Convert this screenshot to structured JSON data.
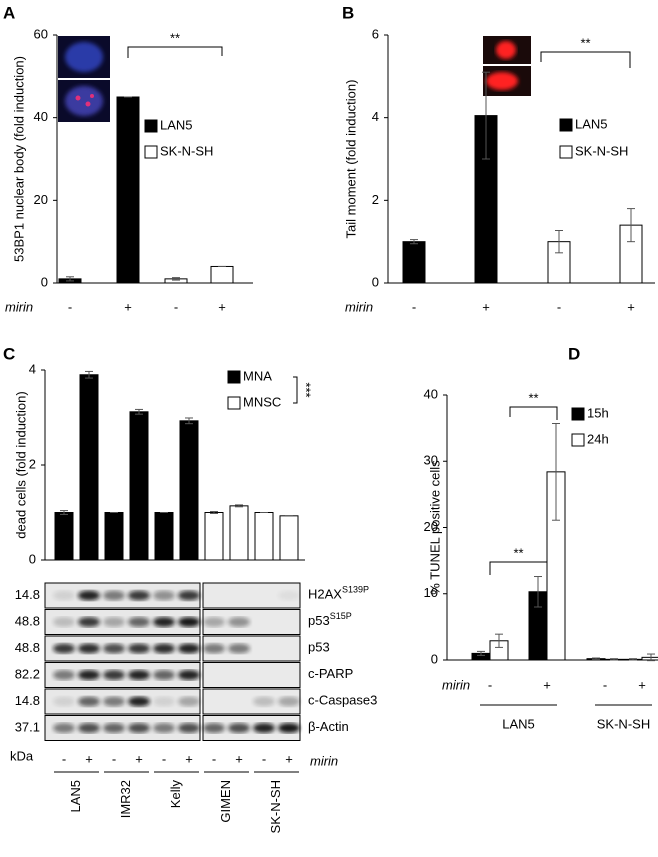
{
  "chart_data": [
    {
      "type": "bar",
      "panel": "A",
      "ylabel": "53BP1 nuclear body (fold induction)",
      "x_label": "mirin",
      "categories": [
        "-",
        "+",
        "-",
        "+"
      ],
      "series": [
        {
          "name": "LAN5",
          "color": "#000000",
          "values": [
            1,
            45,
            null,
            null
          ],
          "errors": [
            0.5,
            0,
            null,
            null
          ]
        },
        {
          "name": "SK-N-SH",
          "color": "#ffffff",
          "values": [
            null,
            null,
            1,
            4
          ],
          "errors": [
            null,
            null,
            0.3,
            0
          ]
        }
      ],
      "ylim": [
        0,
        60
      ],
      "yticks": [
        0,
        20,
        40,
        60
      ],
      "annotations": [
        "**"
      ]
    },
    {
      "type": "bar",
      "panel": "B",
      "ylabel": "Tail moment  (fold induction)",
      "x_label": "mirin",
      "categories": [
        "-",
        "+",
        "-",
        "+"
      ],
      "series": [
        {
          "name": "LAN5",
          "color": "#000000",
          "values": [
            1,
            4.05,
            null,
            null
          ],
          "errors": [
            0.05,
            1.05,
            null,
            null
          ]
        },
        {
          "name": "SK-N-SH",
          "color": "#ffffff",
          "values": [
            null,
            null,
            1,
            1.4
          ],
          "errors": [
            null,
            null,
            0.27,
            0.4
          ]
        }
      ],
      "ylim": [
        0,
        6
      ],
      "yticks": [
        0,
        2,
        4,
        6
      ],
      "annotations": [
        "**"
      ]
    },
    {
      "type": "bar",
      "panel": "C",
      "ylabel": "dead cells (fold induction)",
      "x_label": "mirin",
      "categories": [
        "-",
        "+",
        "-",
        "+",
        "-",
        "+",
        "-",
        "+",
        "-",
        "+"
      ],
      "groups": [
        "LAN5",
        "IMR32",
        "Kelly",
        "GIMEN",
        "SK-N-SH"
      ],
      "series": [
        {
          "name": "MNA",
          "color": "#000000",
          "values": [
            1,
            3.9,
            1,
            3.12,
            1,
            2.93,
            null,
            null,
            null,
            null
          ],
          "errors": [
            0.04,
            0.07,
            0,
            0.05,
            0,
            0.06,
            null,
            null,
            null,
            null
          ]
        },
        {
          "name": "MNSC",
          "color": "#ffffff",
          "values": [
            null,
            null,
            null,
            null,
            null,
            null,
            1,
            1.14,
            1,
            0.93
          ],
          "errors": [
            null,
            null,
            null,
            null,
            null,
            null,
            0.02,
            0.02,
            0,
            0
          ]
        }
      ],
      "ylim": [
        0,
        4
      ],
      "yticks": [
        0,
        2,
        4
      ],
      "annotations": [
        "***"
      ]
    },
    {
      "type": "bar",
      "panel": "D",
      "ylabel": "% TUNEL positive cells",
      "x_label": "mirin",
      "categories": [
        "-",
        "+",
        "-",
        "+"
      ],
      "groups": [
        "LAN5",
        "SK-N-SH"
      ],
      "series": [
        {
          "name": "15h",
          "color": "#000000",
          "values": [
            1,
            10.3,
            0.2,
            0.1
          ],
          "errors": [
            0.3,
            2.3,
            0.1,
            0.1
          ]
        },
        {
          "name": "24h",
          "color": "#ffffff",
          "values": [
            2.9,
            28.4,
            0.1,
            0.4
          ],
          "errors": [
            1,
            7.3,
            0.1,
            0.5
          ]
        }
      ],
      "ylim": [
        0,
        40
      ],
      "yticks": [
        0,
        10,
        20,
        30,
        40
      ],
      "annotations": [
        "**",
        "**"
      ]
    }
  ],
  "blot": {
    "unit": "kDa",
    "rows": [
      {
        "kda": 14.8,
        "protein": "H2AX",
        "sup": "S139P"
      },
      {
        "kda": 48.8,
        "protein": "p53",
        "sup": "S15P"
      },
      {
        "kda": 48.8,
        "protein": "p53"
      },
      {
        "kda": 82.2,
        "protein": "c-PARP"
      },
      {
        "kda": 14.8,
        "protein": "c-Caspase3"
      },
      {
        "kda": 37.1,
        "protein": "β-Actin"
      }
    ]
  }
}
